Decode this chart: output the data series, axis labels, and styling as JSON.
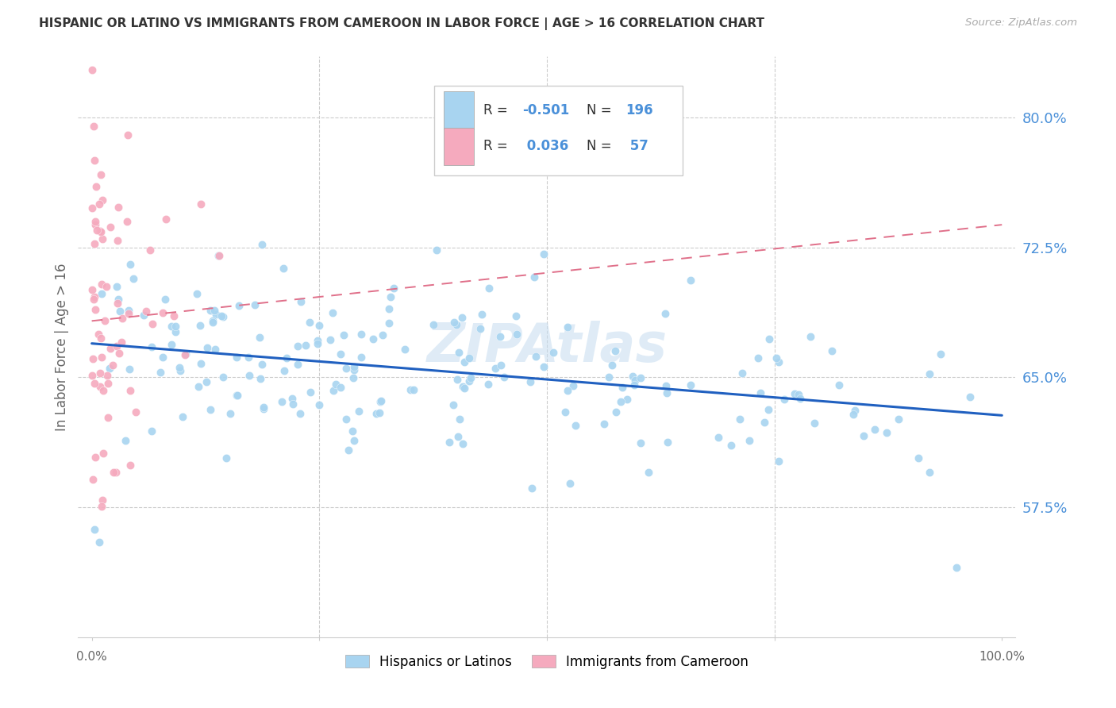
{
  "title": "HISPANIC OR LATINO VS IMMIGRANTS FROM CAMEROON IN LABOR FORCE | AGE > 16 CORRELATION CHART",
  "source": "Source: ZipAtlas.com",
  "ylabel": "In Labor Force | Age > 16",
  "ytick_values": [
    0.8,
    0.725,
    0.65,
    0.575
  ],
  "ymin": 0.5,
  "ymax": 0.835,
  "xmin": -0.015,
  "xmax": 1.015,
  "blue_R": -0.501,
  "blue_N": 196,
  "pink_R": 0.036,
  "pink_N": 57,
  "legend_label_blue": "Hispanics or Latinos",
  "legend_label_pink": "Immigrants from Cameroon",
  "blue_color": "#A8D4F0",
  "pink_color": "#F5AABE",
  "blue_line_color": "#2060C0",
  "pink_line_color": "#E0708A",
  "title_color": "#333333",
  "axis_label_color": "#4A90D9",
  "watermark_color": "#C5DCF0",
  "watermark_text": "ZIPAtlas",
  "blue_line_x0": 0.0,
  "blue_line_x1": 1.0,
  "blue_line_y0": 0.6695,
  "blue_line_y1": 0.628,
  "pink_line_x0": 0.0,
  "pink_line_x1": 1.0,
  "pink_line_y0": 0.6825,
  "pink_line_y1": 0.738
}
